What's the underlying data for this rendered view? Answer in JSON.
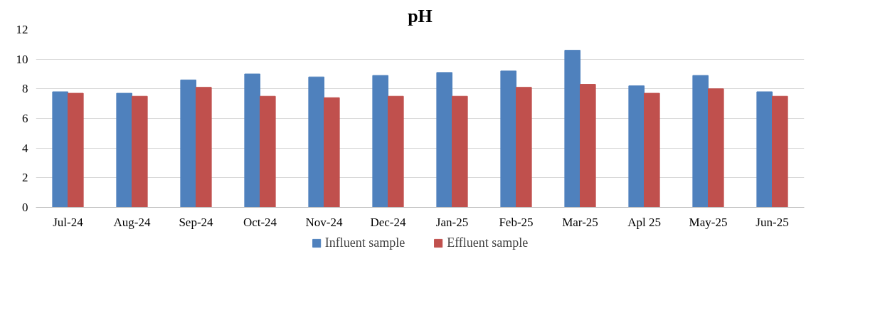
{
  "chart_data": {
    "type": "bar",
    "title": "pH",
    "categories": [
      "Jul-24",
      "Aug-24",
      "Sep-24",
      "Oct-24",
      "Nov-24",
      "Dec-24",
      "Jan-25",
      "Feb-25",
      "Mar-25",
      "Apl 25",
      "May-25",
      "Jun-25"
    ],
    "series": [
      {
        "name": "Influent sample",
        "color": "#4f81bd",
        "values": [
          7.8,
          7.7,
          8.6,
          9.0,
          8.8,
          8.9,
          9.1,
          9.2,
          10.6,
          8.2,
          8.9,
          7.8
        ]
      },
      {
        "name": "Effluent sample",
        "color": "#c0504d",
        "values": [
          7.7,
          7.5,
          8.1,
          7.5,
          7.4,
          7.5,
          7.5,
          8.1,
          8.3,
          7.7,
          8.0,
          7.5
        ]
      }
    ],
    "ylim": [
      0,
      12
    ],
    "yticks": [
      0,
      2,
      4,
      6,
      8,
      10,
      12
    ],
    "grid": "y",
    "legend": "bottom"
  }
}
